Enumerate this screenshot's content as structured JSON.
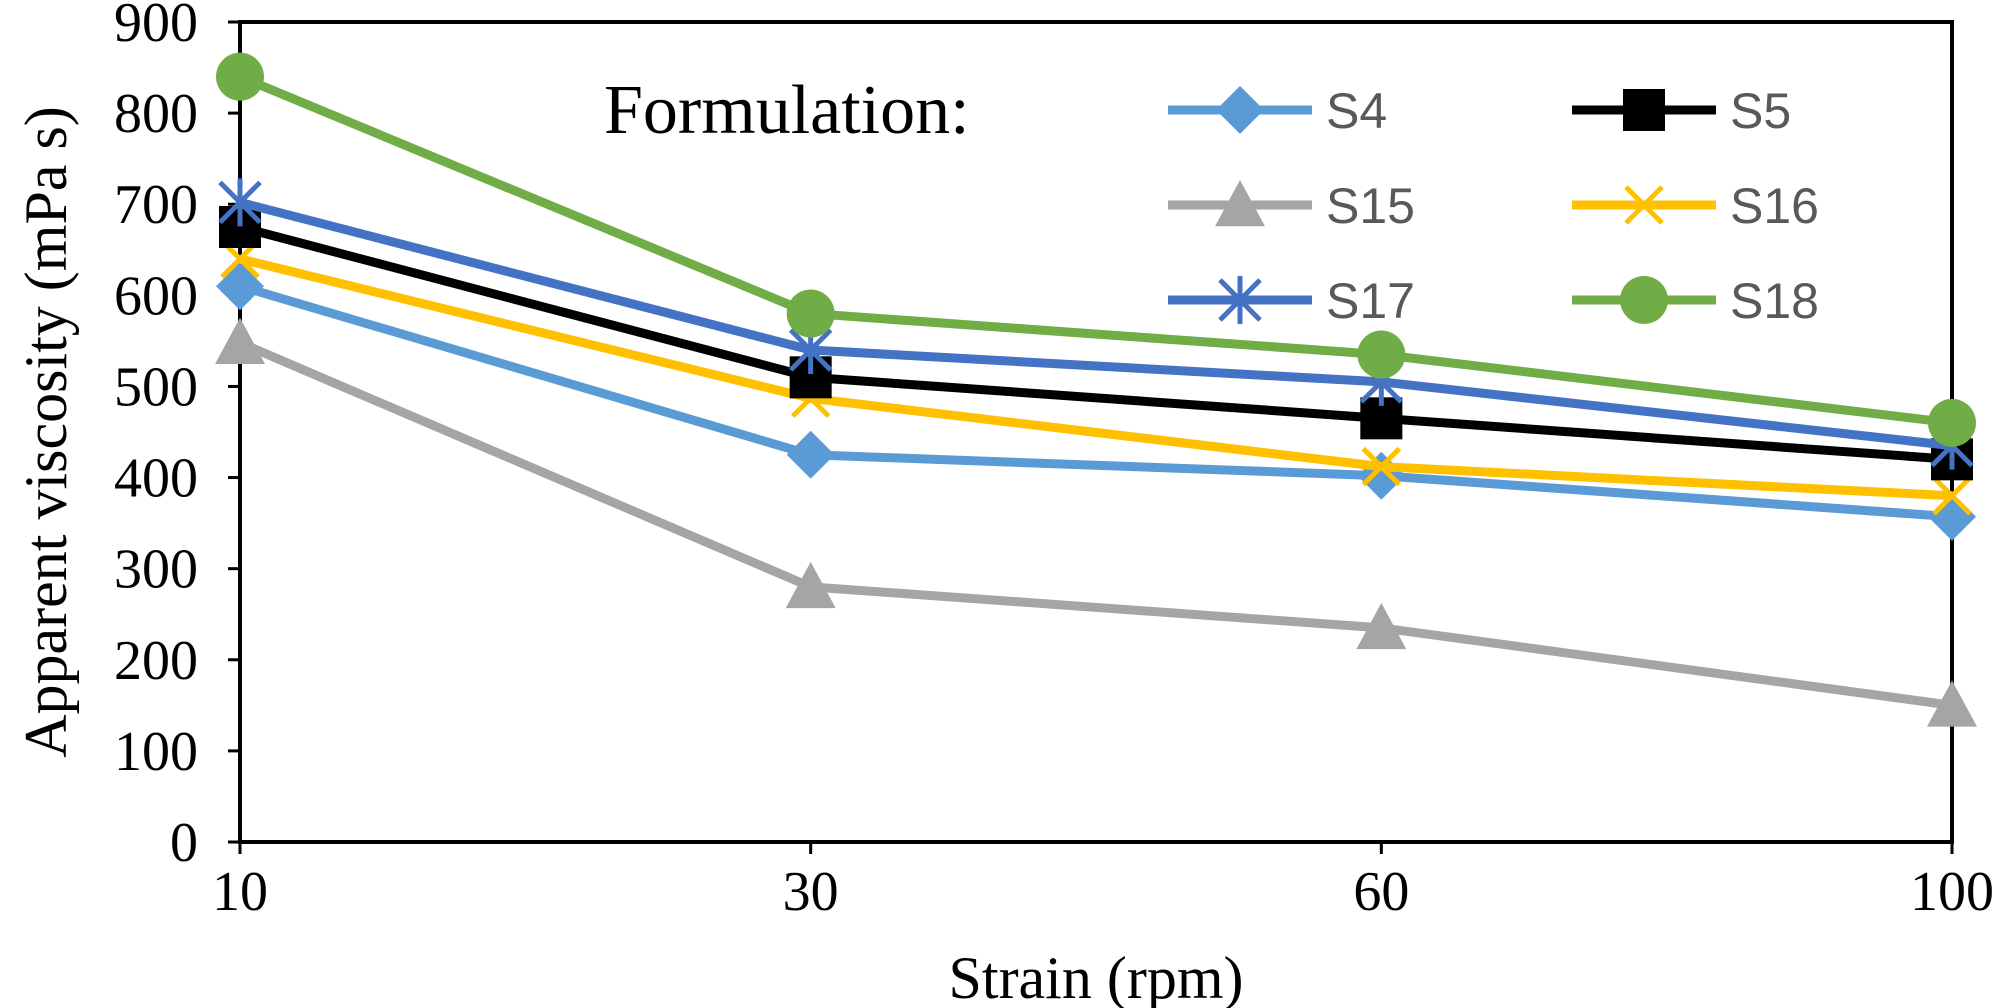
{
  "chart_data": {
    "type": "line",
    "title": "",
    "xlabel": "Strain (rpm)",
    "ylabel": "Apparent viscosity (mPa s)",
    "categories": [
      "10",
      "30",
      "60",
      "100"
    ],
    "ylim": [
      0,
      900
    ],
    "yticks": [
      "0",
      "100",
      "200",
      "300",
      "400",
      "500",
      "600",
      "700",
      "800",
      "900"
    ],
    "grid": false,
    "legend": {
      "title": "Formulation:",
      "placement": "top-right"
    },
    "series": [
      {
        "name": "S4",
        "values": [
          610,
          425,
          402,
          357
        ],
        "color": "#5B9BD5",
        "marker": "diamond"
      },
      {
        "name": "S5",
        "values": [
          675,
          510,
          465,
          420
        ],
        "color": "#000000",
        "marker": "square"
      },
      {
        "name": "S15",
        "values": [
          548,
          280,
          235,
          150
        ],
        "color": "#A5A5A5",
        "marker": "triangle"
      },
      {
        "name": "S16",
        "values": [
          640,
          487,
          412,
          380
        ],
        "color": "#FFC000",
        "marker": "x"
      },
      {
        "name": "S17",
        "values": [
          702,
          540,
          505,
          435
        ],
        "color": "#4472C4",
        "marker": "star"
      },
      {
        "name": "S18",
        "values": [
          840,
          580,
          535,
          460
        ],
        "color": "#70AD47",
        "marker": "circle"
      }
    ]
  }
}
